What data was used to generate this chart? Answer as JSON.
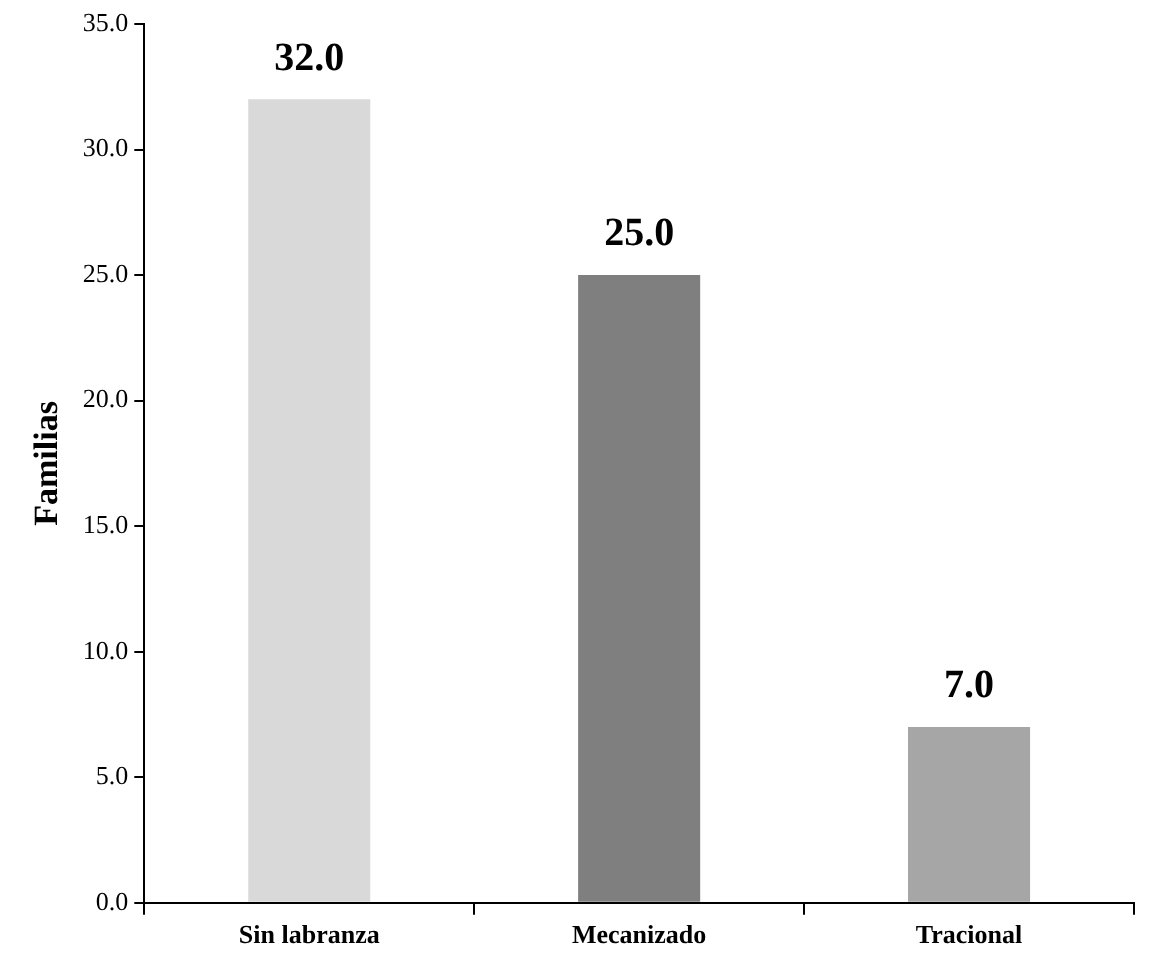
{
  "chart_data": {
    "type": "bar",
    "categories": [
      "Sin labranza",
      "Mecanizado",
      "Tracional"
    ],
    "values": [
      32,
      25,
      7
    ],
    "value_labels": [
      "32.0",
      "25.0",
      "7.0"
    ],
    "colors": [
      "#d9d9d9",
      "#7f7f7f",
      "#a6a6a6"
    ],
    "ylabel": "Familias",
    "ylim": [
      0,
      35
    ],
    "yticks": [
      {
        "value": 0,
        "label": "0.0"
      },
      {
        "value": 5,
        "label": "5.0"
      },
      {
        "value": 10,
        "label": "10.0"
      },
      {
        "value": 15,
        "label": "15.0"
      },
      {
        "value": 20,
        "label": "20.0"
      },
      {
        "value": 25,
        "label": "25.0"
      },
      {
        "value": 30,
        "label": "30.0"
      },
      {
        "value": 35,
        "label": "35.0"
      }
    ],
    "grid": false
  }
}
